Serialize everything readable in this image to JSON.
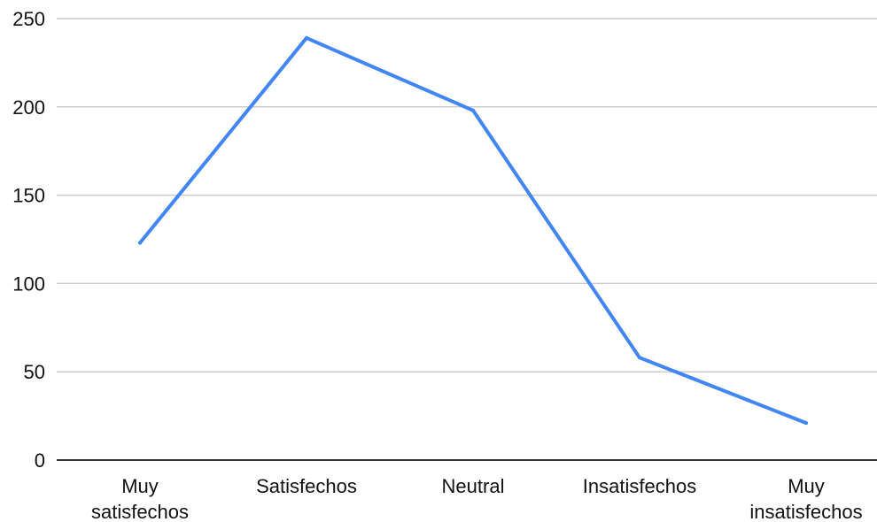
{
  "chart_data": {
    "type": "line",
    "title": "",
    "xlabel": "",
    "ylabel": "",
    "categories": [
      [
        "Muy",
        "satisfechos"
      ],
      [
        "Satisfechos"
      ],
      [
        "Neutral"
      ],
      [
        "Insatisfechos"
      ],
      [
        "Muy",
        "insatisfechos"
      ]
    ],
    "series": [
      {
        "values": [
          123,
          239,
          198,
          58,
          21
        ],
        "color": "#4285F4"
      }
    ],
    "ylim": [
      0,
      250
    ],
    "yticks": [
      0,
      50,
      100,
      150,
      200,
      250
    ],
    "grid": true,
    "legend": "none"
  }
}
